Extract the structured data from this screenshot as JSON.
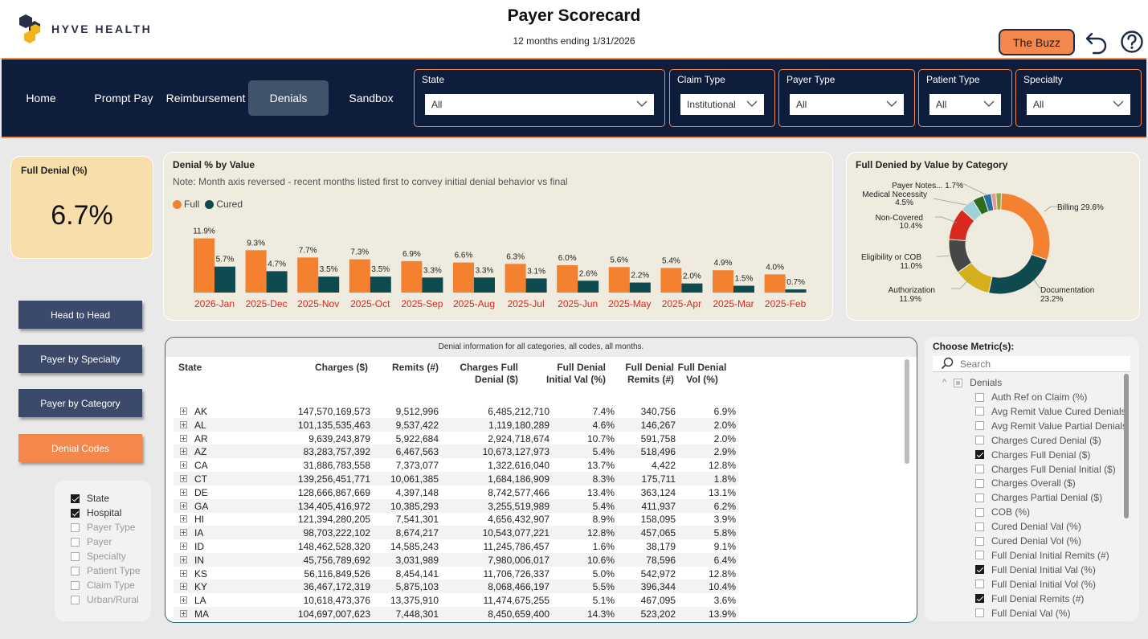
{
  "header": {
    "brand": "HYVE HEALTH",
    "title": "Payer Scorecard",
    "subtitle": "12 months ending 1/31/2026",
    "buzz_label": "The Buzz"
  },
  "nav": {
    "items": [
      {
        "label": "Home"
      },
      {
        "label": "Prompt Pay"
      },
      {
        "label": "Reimbursement"
      },
      {
        "label": "Denials"
      },
      {
        "label": "Sandbox"
      }
    ],
    "active": "Denials"
  },
  "filters": [
    {
      "label": "State",
      "value": "All"
    },
    {
      "label": "Claim Type",
      "value": "Institutional"
    },
    {
      "label": "Payer Type",
      "value": "All"
    },
    {
      "label": "Patient Type",
      "value": "All"
    },
    {
      "label": "Specialty",
      "value": "All"
    }
  ],
  "kpi": {
    "label": "Full Denial (%)",
    "value": "6.7%"
  },
  "bar_chart": {
    "title": "Denial % by Value",
    "note": "Note:  Month axis reversed - recent months listed first to convey initial denial behavior vs final",
    "legend": [
      "Full",
      "Cured"
    ]
  },
  "pie_chart": {
    "title": "Full Denied by Value by Category"
  },
  "chart_data": [
    {
      "type": "bar",
      "title": "Denial % by Value",
      "categories": [
        "2026-Jan",
        "2025-Dec",
        "2025-Nov",
        "2025-Oct",
        "2025-Sep",
        "2025-Aug",
        "2025-Jul",
        "2025-Jun",
        "2025-May",
        "2025-Apr",
        "2025-Mar",
        "2025-Feb"
      ],
      "series": [
        {
          "name": "Full",
          "color": "#f4812f",
          "values": [
            11.9,
            9.3,
            7.7,
            7.3,
            6.9,
            6.6,
            6.3,
            6.0,
            5.6,
            5.4,
            4.9,
            4.0
          ]
        },
        {
          "name": "Cured",
          "color": "#0f4a4f",
          "values": [
            5.7,
            4.7,
            3.5,
            3.5,
            3.3,
            3.3,
            3.1,
            2.6,
            2.2,
            2.0,
            1.5,
            0.7
          ]
        }
      ],
      "ylim": [
        0,
        12
      ]
    },
    {
      "type": "pie",
      "title": "Full Denied by Value by Category",
      "slices": [
        {
          "label": "Billing",
          "value": 29.6,
          "color": "#f4812f"
        },
        {
          "label": "Documentation",
          "value": 23.2,
          "color": "#0f4a4f"
        },
        {
          "label": "Authorization",
          "value": 11.9,
          "color": "#d4b01c"
        },
        {
          "label": "Eligibility or COB",
          "value": 11.0,
          "color": "#474747"
        },
        {
          "label": "Non-Covered",
          "value": 10.4,
          "color": "#d9281e"
        },
        {
          "label": "Medical Necessity",
          "value": 4.5,
          "color": "#9ed0d9"
        },
        {
          "label": "",
          "value": 3.6,
          "color": "#2e6b1e"
        },
        {
          "label": "",
          "value": 2.5,
          "color": "#2a6fa8"
        },
        {
          "label": "",
          "value": 1.6,
          "color": "#e89a8a"
        },
        {
          "label": "Payer Notes...",
          "value": 1.7,
          "color": "#8faa3c"
        }
      ],
      "labels": [
        {
          "text": "Billing 29.6%"
        },
        {
          "text": "Documentation"
        },
        {
          "text": "23.2%"
        },
        {
          "text": "Authorization"
        },
        {
          "text": "11.9%"
        },
        {
          "text": "Eligibility or COB"
        },
        {
          "text": "11.0%"
        },
        {
          "text": "Non-Covered"
        },
        {
          "text": "10.4%"
        },
        {
          "text": "Medical Necessity"
        },
        {
          "text": "4.5%"
        },
        {
          "text": "Payer Notes... 1.7%"
        }
      ]
    }
  ],
  "side_buttons": [
    {
      "label": "Head to Head"
    },
    {
      "label": "Payer by Specialty"
    },
    {
      "label": "Payer by Category"
    },
    {
      "label": "Denial Codes"
    }
  ],
  "field_list": [
    {
      "label": "State",
      "checked": true
    },
    {
      "label": "Hospital",
      "checked": true
    },
    {
      "label": "Payer Type",
      "checked": false
    },
    {
      "label": "Payer",
      "checked": false
    },
    {
      "label": "Specialty",
      "checked": false
    },
    {
      "label": "Patient Type",
      "checked": false
    },
    {
      "label": "Claim Type",
      "checked": false
    },
    {
      "label": "Urban/Rural",
      "checked": false
    }
  ],
  "table": {
    "caption": "Denial information for all categories, all codes, all months.",
    "columns": [
      "State",
      "Charges ($)",
      "Remits (#)",
      "Charges Full Denial ($)",
      "Full Denial Initial Val (%)",
      "Full Denial Remits (#)",
      "Full Denial Vol (%)"
    ],
    "rows": [
      [
        "AK",
        "147,570,169,573",
        "9,512,996",
        "6,485,212,710",
        "7.4%",
        "340,756",
        "6.9%"
      ],
      [
        "AL",
        "101,135,535,463",
        "9,537,422",
        "1,119,180,289",
        "4.6%",
        "146,267",
        "2.0%"
      ],
      [
        "AR",
        "9,639,243,879",
        "5,922,684",
        "2,924,718,674",
        "10.7%",
        "591,758",
        "2.0%"
      ],
      [
        "AZ",
        "83,283,757,392",
        "6,467,563",
        "10,673,127,973",
        "5.4%",
        "518,496",
        "2.9%"
      ],
      [
        "CA",
        "31,886,783,558",
        "7,373,077",
        "1,322,616,040",
        "13.7%",
        "4,422",
        "12.8%"
      ],
      [
        "CT",
        "139,256,451,771",
        "10,061,385",
        "1,684,186,909",
        "8.3%",
        "175,711",
        "1.8%"
      ],
      [
        "DE",
        "128,666,867,669",
        "4,397,148",
        "8,742,577,466",
        "13.4%",
        "363,124",
        "13.1%"
      ],
      [
        "GA",
        "134,405,416,972",
        "10,385,293",
        "3,255,519,989",
        "5.4%",
        "411,937",
        "6.2%"
      ],
      [
        "HI",
        "121,394,280,205",
        "7,541,301",
        "4,656,432,907",
        "8.9%",
        "158,095",
        "3.9%"
      ],
      [
        "IA",
        "98,703,222,102",
        "8,674,217",
        "10,543,077,221",
        "12.8%",
        "457,065",
        "5.8%"
      ],
      [
        "ID",
        "148,462,528,320",
        "14,585,243",
        "11,245,786,457",
        "1.6%",
        "38,179",
        "9.1%"
      ],
      [
        "IN",
        "45,756,789,692",
        "3,031,989",
        "7,980,006,017",
        "10.6%",
        "78,596",
        "6.4%"
      ],
      [
        "KS",
        "56,116,849,526",
        "8,454,141",
        "11,706,726,337",
        "5.0%",
        "542,972",
        "12.8%"
      ],
      [
        "KY",
        "36,467,172,319",
        "5,875,103",
        "8,068,466,197",
        "5.5%",
        "396,344",
        "10.4%"
      ],
      [
        "LA",
        "10,618,473,376",
        "13,375,910",
        "11,474,675,255",
        "5.1%",
        "467,095",
        "3.6%"
      ],
      [
        "MA",
        "104,697,007,623",
        "7,448,301",
        "8,450,659,400",
        "14.3%",
        "523,202",
        "13.9%"
      ]
    ]
  },
  "metrics": {
    "title": "Choose Metric(s):",
    "search_placeholder": "Search",
    "group": "Denials",
    "items": [
      {
        "label": "Auth Ref on Claim (%)",
        "checked": false
      },
      {
        "label": "Avg Remit Value Cured Denials...",
        "checked": false
      },
      {
        "label": "Avg Remit Value Partial Denials",
        "checked": false
      },
      {
        "label": "Charges Cured Denial ($)",
        "checked": false
      },
      {
        "label": "Charges Full Denial ($)",
        "checked": true
      },
      {
        "label": "Charges Full Denial Initial ($)",
        "checked": false
      },
      {
        "label": "Charges Overall ($)",
        "checked": false
      },
      {
        "label": "Charges Partial Denial ($)",
        "checked": false
      },
      {
        "label": "COB (%)",
        "checked": false
      },
      {
        "label": "Cured Denial Val (%)",
        "checked": false
      },
      {
        "label": "Cured Denial Vol (%)",
        "checked": false
      },
      {
        "label": "Full Denial Initial Remits (#)",
        "checked": false
      },
      {
        "label": "Full Denial Initial Val (%)",
        "checked": true
      },
      {
        "label": "Full Denial Initial Vol (%)",
        "checked": false
      },
      {
        "label": "Full Denial Remits (#)",
        "checked": true
      },
      {
        "label": "Full Denial Val (%)",
        "checked": false
      }
    ]
  }
}
